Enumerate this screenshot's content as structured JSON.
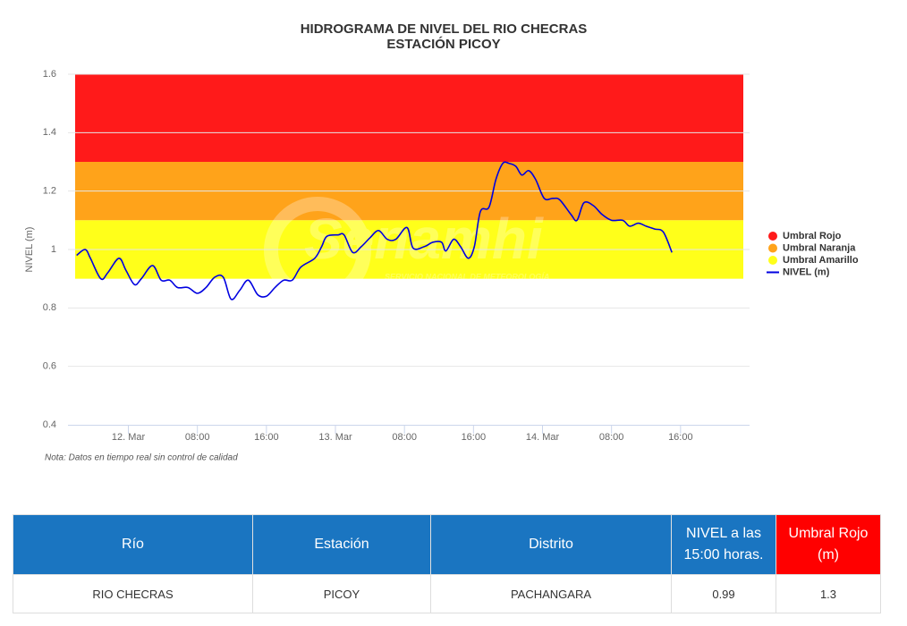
{
  "chart_data": {
    "type": "line",
    "title": "HIDROGRAMA DE NIVEL DEL RIO CHECRAS",
    "subtitle": "ESTACIÓN PICOY",
    "y_label": "NIVEL (m)",
    "note": "Nota: Datos en tiempo real sin control de calidad",
    "watermark": {
      "logo": "Senamhi",
      "line1": "SERVICIO NACIONAL DE METEOROLOGÍA",
      "line2": "E HIDROLOGÍA DEL PERÚ"
    },
    "ylim": [
      0.4,
      1.6
    ],
    "yticks": [
      0.4,
      0.6,
      0.8,
      1,
      1.2,
      1.4,
      1.6
    ],
    "xlim": [
      -7,
      72
    ],
    "xticks": [
      {
        "value": 0,
        "label": "12. Mar"
      },
      {
        "value": 8,
        "label": "08:00"
      },
      {
        "value": 16,
        "label": "16:00"
      },
      {
        "value": 24,
        "label": "13. Mar"
      },
      {
        "value": 32,
        "label": "08:00"
      },
      {
        "value": 40,
        "label": "16:00"
      },
      {
        "value": 48,
        "label": "14. Mar"
      },
      {
        "value": 56,
        "label": "08:00"
      },
      {
        "value": 64,
        "label": "16:00"
      }
    ],
    "grid": true,
    "legend": "right",
    "thresholds": [
      {
        "name": "Umbral Rojo",
        "color": "#ff1a1a",
        "from": 1.3,
        "to": 1.6
      },
      {
        "name": "Umbral Naranja",
        "color": "#ffa31a",
        "from": 1.1,
        "to": 1.3
      },
      {
        "name": "Umbral Amarillo",
        "color": "#ffff1a",
        "from": 0.9,
        "to": 1.1
      }
    ],
    "x": [
      -6,
      -5,
      -4.4,
      -3.2,
      -2.4,
      -1.1,
      -0.3,
      0.7,
      1.5,
      2.8,
      3.8,
      4.8,
      5.7,
      6.9,
      8,
      9,
      10,
      11,
      11.9,
      12.9,
      13.9,
      15,
      16,
      17,
      18,
      19,
      20,
      21.6,
      22.4,
      23,
      24.3,
      25,
      26,
      27,
      28,
      29,
      30,
      31,
      32.3,
      33,
      34.3,
      35.3,
      36.3,
      36.8,
      37.7,
      38.5,
      39.4,
      40.1,
      40.8,
      41.8,
      42.6,
      43.4,
      44.1,
      44.9,
      45.6,
      46.4,
      47.2,
      48.2,
      49.2,
      50,
      51.3,
      52,
      52.8,
      53.9,
      54.9,
      56,
      57.3,
      58.1,
      59.1,
      60,
      61,
      62,
      63
    ],
    "series": [
      {
        "name": "NIVEL (m)",
        "color": "#0000e0",
        "values": [
          0.98,
          1.0,
          0.97,
          0.9,
          0.92,
          0.97,
          0.93,
          0.88,
          0.9,
          0.945,
          0.895,
          0.895,
          0.87,
          0.87,
          0.85,
          0.87,
          0.905,
          0.905,
          0.83,
          0.86,
          0.895,
          0.845,
          0.84,
          0.87,
          0.895,
          0.895,
          0.94,
          0.97,
          1.01,
          1.045,
          1.05,
          1.05,
          0.99,
          1.01,
          1.04,
          1.065,
          1.035,
          1.035,
          1.075,
          1.005,
          1.01,
          1.025,
          1.025,
          0.995,
          1.035,
          1.01,
          0.97,
          1.01,
          1.13,
          1.145,
          1.24,
          1.295,
          1.295,
          1.285,
          1.255,
          1.27,
          1.24,
          1.175,
          1.175,
          1.17,
          1.12,
          1.1,
          1.16,
          1.15,
          1.12,
          1.1,
          1.1,
          1.08,
          1.09,
          1.08,
          1.07,
          1.06,
          0.99
        ]
      }
    ]
  },
  "table": {
    "headers": [
      "Río",
      "Estación",
      "Distrito",
      "NIVEL a las 15:00 horas.",
      "Umbral Rojo (m)"
    ],
    "rows": [
      [
        "RIO CHECRAS",
        "PICOY",
        "PACHANGARA",
        0.99,
        1.3
      ]
    ]
  }
}
